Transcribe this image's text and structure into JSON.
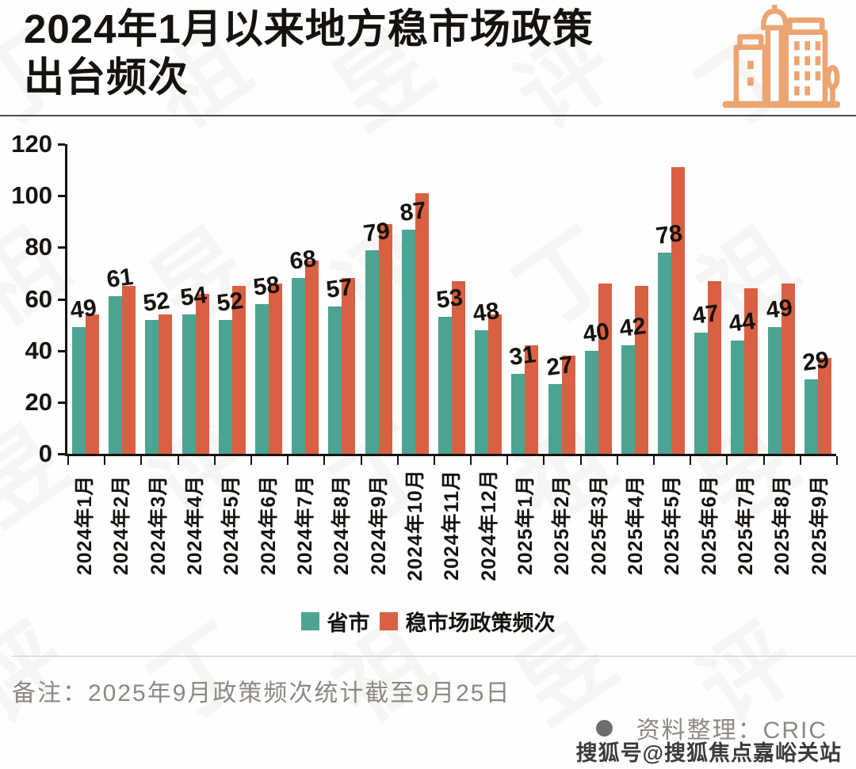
{
  "header": {
    "title_line1": "2024年1月以来地方稳市场政策",
    "title_line2": "出台频次",
    "icon_color": "#eca571"
  },
  "chart_data": {
    "type": "bar",
    "title": "2024年1月以来地方稳市场政策出台频次",
    "categories": [
      "2024年1月",
      "2024年2月",
      "2024年3月",
      "2024年4月",
      "2024年5月",
      "2024年6月",
      "2024年7月",
      "2024年8月",
      "2024年9月",
      "2024年10月",
      "2024年11月",
      "2024年12月",
      "2025年1月",
      "2025年2月",
      "2025年3月",
      "2025年4月",
      "2025年5月",
      "2025年6月",
      "2025年7月",
      "2025年8月",
      "2025年9月"
    ],
    "series": [
      {
        "name": "省市",
        "color": "#4ba494",
        "values": [
          49,
          61,
          52,
          54,
          52,
          58,
          68,
          57,
          79,
          87,
          53,
          48,
          31,
          27,
          40,
          42,
          78,
          47,
          44,
          49,
          29
        ],
        "data_labels": true
      },
      {
        "name": "稳市场政策频次",
        "color": "#d96043",
        "values": [
          54,
          65,
          54,
          62,
          65,
          66,
          75,
          68,
          89,
          101,
          67,
          54,
          42,
          38,
          66,
          65,
          111,
          67,
          64,
          66,
          37
        ],
        "data_labels": false
      }
    ],
    "xlabel": "",
    "ylabel": "",
    "ylim": [
      0,
      120
    ],
    "yticks": [
      0,
      20,
      40,
      60,
      80,
      100,
      120
    ],
    "grid": false,
    "legend_position": "bottom"
  },
  "footer": {
    "note": "备注：2025年9月政策频次统计截至9月25日",
    "source_label": "资料整理：CRIC",
    "sohu_watermark": "搜狐号@搜狐焦点嘉峪关站"
  },
  "watermark_text": "丁祖昱评"
}
